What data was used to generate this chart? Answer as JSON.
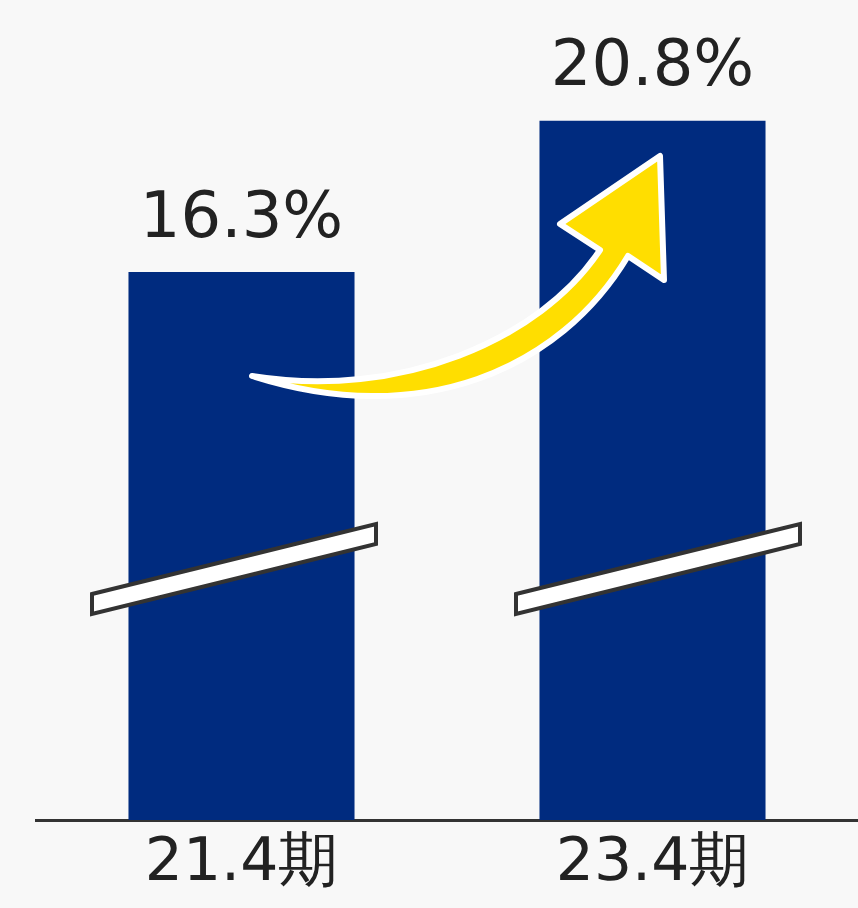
{
  "chart_data": {
    "type": "bar",
    "relative": false,
    "categories": [
      "21.4期",
      "23.4期"
    ],
    "values": [
      16.3,
      20.8
    ],
    "color": "#002b7f",
    "value_labels": [
      "16.3%",
      "20.8%"
    ],
    "grid": false,
    "legend": false
  }
}
